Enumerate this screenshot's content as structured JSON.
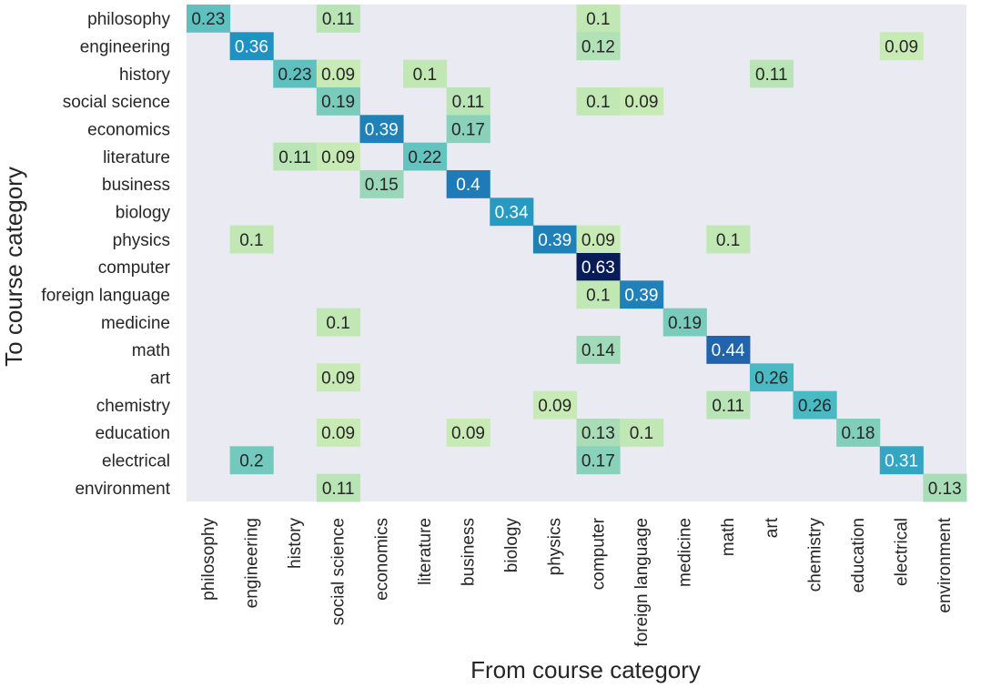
{
  "chart_data": {
    "type": "heatmap",
    "title": "",
    "xlabel": "From course category",
    "ylabel": "To course category",
    "x_categories": [
      "philosophy",
      "engineering",
      "history",
      "social science",
      "economics",
      "literature",
      "business",
      "biology",
      "physics",
      "computer",
      "foreign language",
      "medicine",
      "math",
      "art",
      "chemistry",
      "education",
      "electrical",
      "environment"
    ],
    "y_categories": [
      "philosophy",
      "engineering",
      "history",
      "social science",
      "economics",
      "literature",
      "business",
      "biology",
      "physics",
      "computer",
      "foreign language",
      "medicine",
      "math",
      "art",
      "chemistry",
      "education",
      "electrical",
      "environment"
    ],
    "colormap": "YlGnBu",
    "value_range": [
      0,
      0.63
    ],
    "cells": [
      {
        "row": "philosophy",
        "col": "philosophy",
        "value": 0.23
      },
      {
        "row": "philosophy",
        "col": "social science",
        "value": 0.11
      },
      {
        "row": "philosophy",
        "col": "computer",
        "value": 0.1
      },
      {
        "row": "engineering",
        "col": "engineering",
        "value": 0.36
      },
      {
        "row": "engineering",
        "col": "computer",
        "value": 0.12
      },
      {
        "row": "engineering",
        "col": "electrical",
        "value": 0.09
      },
      {
        "row": "history",
        "col": "history",
        "value": 0.23
      },
      {
        "row": "history",
        "col": "social science",
        "value": 0.09
      },
      {
        "row": "history",
        "col": "literature",
        "value": 0.1
      },
      {
        "row": "history",
        "col": "art",
        "value": 0.11
      },
      {
        "row": "social science",
        "col": "social science",
        "value": 0.19
      },
      {
        "row": "social science",
        "col": "business",
        "value": 0.11
      },
      {
        "row": "social science",
        "col": "computer",
        "value": 0.1
      },
      {
        "row": "social science",
        "col": "foreign language",
        "value": 0.09
      },
      {
        "row": "economics",
        "col": "economics",
        "value": 0.39
      },
      {
        "row": "economics",
        "col": "business",
        "value": 0.17
      },
      {
        "row": "literature",
        "col": "history",
        "value": 0.11
      },
      {
        "row": "literature",
        "col": "social science",
        "value": 0.09
      },
      {
        "row": "literature",
        "col": "literature",
        "value": 0.22
      },
      {
        "row": "business",
        "col": "economics",
        "value": 0.15
      },
      {
        "row": "business",
        "col": "business",
        "value": 0.4
      },
      {
        "row": "biology",
        "col": "biology",
        "value": 0.34
      },
      {
        "row": "physics",
        "col": "engineering",
        "value": 0.1
      },
      {
        "row": "physics",
        "col": "physics",
        "value": 0.39
      },
      {
        "row": "physics",
        "col": "computer",
        "value": 0.09
      },
      {
        "row": "physics",
        "col": "math",
        "value": 0.1
      },
      {
        "row": "computer",
        "col": "computer",
        "value": 0.63
      },
      {
        "row": "foreign language",
        "col": "computer",
        "value": 0.1
      },
      {
        "row": "foreign language",
        "col": "foreign language",
        "value": 0.39
      },
      {
        "row": "medicine",
        "col": "social science",
        "value": 0.1
      },
      {
        "row": "medicine",
        "col": "medicine",
        "value": 0.19
      },
      {
        "row": "math",
        "col": "computer",
        "value": 0.14
      },
      {
        "row": "math",
        "col": "math",
        "value": 0.44
      },
      {
        "row": "art",
        "col": "social science",
        "value": 0.09
      },
      {
        "row": "art",
        "col": "art",
        "value": 0.26
      },
      {
        "row": "chemistry",
        "col": "physics",
        "value": 0.09
      },
      {
        "row": "chemistry",
        "col": "math",
        "value": 0.11
      },
      {
        "row": "chemistry",
        "col": "chemistry",
        "value": 0.26
      },
      {
        "row": "education",
        "col": "social science",
        "value": 0.09
      },
      {
        "row": "education",
        "col": "business",
        "value": 0.09
      },
      {
        "row": "education",
        "col": "computer",
        "value": 0.13
      },
      {
        "row": "education",
        "col": "foreign language",
        "value": 0.1
      },
      {
        "row": "education",
        "col": "education",
        "value": 0.18
      },
      {
        "row": "electrical",
        "col": "engineering",
        "value": 0.2
      },
      {
        "row": "electrical",
        "col": "computer",
        "value": 0.17
      },
      {
        "row": "electrical",
        "col": "electrical",
        "value": 0.31
      },
      {
        "row": "environment",
        "col": "social science",
        "value": 0.11
      },
      {
        "row": "environment",
        "col": "environment",
        "value": 0.13
      }
    ]
  }
}
